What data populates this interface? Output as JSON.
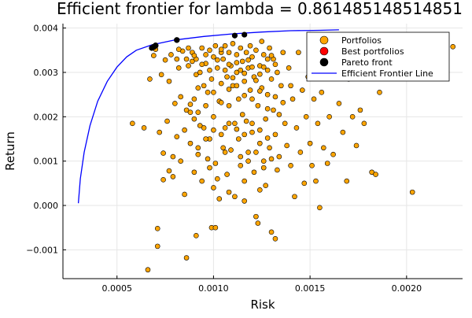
{
  "chart_data": {
    "type": "scatter",
    "title": "Efficient frontier for lambda = 0.861485148514851",
    "xlabel": "Risk",
    "ylabel": "Return",
    "xlim": [
      0.00022,
      0.00229
    ],
    "ylim": [
      -0.00165,
      0.0041
    ],
    "xticks": [
      0.0005,
      0.001,
      0.0015,
      0.002
    ],
    "xtick_labels": [
      "0.0005",
      "0.0010",
      "0.0015",
      "0.0020"
    ],
    "yticks": [
      -0.001,
      0.0,
      0.001,
      0.002,
      0.003,
      0.004
    ],
    "ytick_labels": [
      "−0.001",
      "0.000",
      "0.001",
      "0.002",
      "0.003",
      "0.004"
    ],
    "grid": true,
    "legend_position": "top-right",
    "legend": [
      {
        "label": "Portfolios",
        "kind": "marker",
        "color": "#FFA500"
      },
      {
        "label": "Best portfolios",
        "kind": "marker",
        "color": "#FF0000"
      },
      {
        "label": "Pareto front",
        "kind": "marker",
        "color": "#000000"
      },
      {
        "label": "Efficient Frontier Line",
        "kind": "line",
        "color": "#0000FF"
      }
    ],
    "series": [
      {
        "name": "Portfolios",
        "kind": "scatter",
        "color": "#FFA500",
        "points": [
          [
            0.00058,
            0.00185
          ],
          [
            0.00064,
            0.00175
          ],
          [
            0.00066,
            -0.00145
          ],
          [
            0.00067,
            0.00285
          ],
          [
            0.00069,
            0.00338
          ],
          [
            0.0007,
            0.00352
          ],
          [
            0.00071,
            -0.00052
          ],
          [
            0.00071,
            -0.00092
          ],
          [
            0.00072,
            0.00165
          ],
          [
            0.00073,
            0.00295
          ],
          [
            0.00074,
            0.00118
          ],
          [
            0.00074,
            0.00058
          ],
          [
            0.00075,
            0.00328
          ],
          [
            0.00076,
            0.0019
          ],
          [
            0.00077,
            0.00078
          ],
          [
            0.00077,
            0.0028
          ],
          [
            0.00078,
            0.0034
          ],
          [
            0.00079,
            0.0011
          ],
          [
            0.00079,
            0.00065
          ],
          [
            0.0008,
            0.0023
          ],
          [
            0.00081,
            0.0033
          ],
          [
            0.00081,
            0.00155
          ],
          [
            0.00082,
            0.0031
          ],
          [
            0.00083,
            0.00245
          ],
          [
            0.00083,
            0.001
          ],
          [
            0.00084,
            0.00348
          ],
          [
            0.00085,
            0.0017
          ],
          [
            0.00085,
            0.00025
          ],
          [
            0.00086,
            -0.00118
          ],
          [
            0.00086,
            0.00215
          ],
          [
            0.00087,
            0.00355
          ],
          [
            0.00087,
            0.00315
          ],
          [
            0.00088,
            0.0021
          ],
          [
            0.00088,
            0.0014
          ],
          [
            0.00089,
            0.00325
          ],
          [
            0.00089,
            0.00345
          ],
          [
            0.0009,
            0.0024
          ],
          [
            0.0009,
            0.00075
          ],
          [
            0.0009,
            0.00195
          ],
          [
            0.00091,
            0.00295
          ],
          [
            0.00091,
            0.0033
          ],
          [
            0.00091,
            -0.00068
          ],
          [
            0.00092,
            0.0013
          ],
          [
            0.00092,
            0.00265
          ],
          [
            0.00093,
            0.003
          ],
          [
            0.00093,
            0.0018
          ],
          [
            0.00094,
            0.00355
          ],
          [
            0.00094,
            0.00055
          ],
          [
            0.00095,
            0.0027
          ],
          [
            0.00095,
            0.00175
          ],
          [
            0.00096,
            0.0032
          ],
          [
            0.00096,
            0.0034
          ],
          [
            0.00097,
            0.00255
          ],
          [
            0.00097,
            0.00105
          ],
          [
            0.00098,
            0.0035
          ],
          [
            0.00098,
            0.0015
          ],
          [
            0.00099,
            0.00285
          ],
          [
            0.00099,
            -0.0005
          ],
          [
            0.001,
            0.002
          ],
          [
            0.001,
            0.00335
          ],
          [
            0.00101,
            0.0036
          ],
          [
            0.00101,
            0.00095
          ],
          [
            0.00101,
            -0.0005
          ],
          [
            0.00102,
            0.0031
          ],
          [
            0.00102,
            0.0006
          ],
          [
            0.00103,
            0.00235
          ],
          [
            0.00103,
            0.00015
          ],
          [
            0.00104,
            0.00345
          ],
          [
            0.00104,
            0.00275
          ],
          [
            0.00105,
            0.0013
          ],
          [
            0.00105,
            0.0033
          ],
          [
            0.00106,
            0.00175
          ],
          [
            0.00106,
            0.0036
          ],
          [
            0.00107,
            0.0029
          ],
          [
            0.00107,
            0.0007
          ],
          [
            0.00108,
            0.00345
          ],
          [
            0.00108,
            0.00225
          ],
          [
            0.00109,
            0.00315
          ],
          [
            0.00109,
            0.00125
          ],
          [
            0.0011,
            0.0027
          ],
          [
            0.0011,
            0.00365
          ],
          [
            0.00111,
            0.0002
          ],
          [
            0.00111,
            0.00185
          ],
          [
            0.00112,
            0.0034
          ],
          [
            0.00112,
            0.003
          ],
          [
            0.00113,
            0.0024
          ],
          [
            0.00113,
            0.0015
          ],
          [
            0.00114,
            0.00355
          ],
          [
            0.00114,
            0.0009
          ],
          [
            0.00115,
            0.00325
          ],
          [
            0.00115,
            0.00205
          ],
          [
            0.00116,
            0.0028
          ],
          [
            0.00116,
            0.00055
          ],
          [
            0.00117,
            0.00345
          ],
          [
            0.00117,
            0.0019
          ],
          [
            0.00118,
            0.0031
          ],
          [
            0.00118,
            0.0012
          ],
          [
            0.00119,
            0.0026
          ],
          [
            0.00119,
            0.0036
          ],
          [
            0.0012,
            0.00335
          ],
          [
            0.0012,
            0.00165
          ],
          [
            0.00121,
            0.0029
          ],
          [
            0.00121,
            0.00075
          ],
          [
            0.00122,
            0.0035
          ],
          [
            0.00122,
            -0.00025
          ],
          [
            0.00123,
            0.00225
          ],
          [
            0.00123,
            -0.0004
          ],
          [
            0.00124,
            0.00315
          ],
          [
            0.00124,
            0.0014
          ],
          [
            0.00125,
            0.0037
          ],
          [
            0.00125,
            0.00265
          ],
          [
            0.00126,
            0.001
          ],
          [
            0.00126,
            0.0034
          ],
          [
            0.00127,
            0.00195
          ],
          [
            0.00127,
            0.00045
          ],
          [
            0.00128,
            0.00305
          ],
          [
            0.00128,
            0.0025
          ],
          [
            0.00129,
            0.00355
          ],
          [
            0.00129,
            0.0013
          ],
          [
            0.0013,
            0.00285
          ],
          [
            0.0013,
            -0.0006
          ],
          [
            0.00131,
            0.00215
          ],
          [
            0.00131,
            0.0033
          ],
          [
            0.00132,
            0.0016
          ],
          [
            0.00132,
            -0.00075
          ],
          [
            0.00133,
            0.003
          ],
          [
            0.00133,
            0.0008
          ],
          [
            0.00134,
            0.00205
          ],
          [
            0.00134,
            0.0011
          ],
          [
            0.00135,
            0.0027
          ],
          [
            0.00136,
            0.00345
          ],
          [
            0.00137,
            0.00185
          ],
          [
            0.00138,
            0.00135
          ],
          [
            0.00139,
            0.0031
          ],
          [
            0.0014,
            0.0009
          ],
          [
            0.00141,
            0.0024
          ],
          [
            0.00142,
            0.0002
          ],
          [
            0.00143,
            0.00175
          ],
          [
            0.00144,
            0.00345
          ],
          [
            0.00145,
            0.0012
          ],
          [
            0.00146,
            0.0026
          ],
          [
            0.00147,
            0.0005
          ],
          [
            0.00148,
            0.002
          ],
          [
            0.00149,
            0.0029
          ],
          [
            0.0015,
            0.0014
          ],
          [
            0.00151,
            0.0009
          ],
          [
            0.00152,
            0.0024
          ],
          [
            0.00153,
            0.00055
          ],
          [
            0.00154,
            0.00185
          ],
          [
            0.00155,
            -5e-05
          ],
          [
            0.00156,
            0.00255
          ],
          [
            0.00157,
            0.0013
          ],
          [
            0.00158,
            0.0031
          ],
          [
            0.00159,
            0.00095
          ],
          [
            0.0016,
            0.002
          ],
          [
            0.00162,
            0.00115
          ],
          [
            0.00163,
            0.0033
          ],
          [
            0.00165,
            0.0023
          ],
          [
            0.00167,
            0.00165
          ],
          [
            0.00169,
            0.00055
          ],
          [
            0.0017,
            0.00285
          ],
          [
            0.00172,
            0.002
          ],
          [
            0.00174,
            0.00135
          ],
          [
            0.00176,
            0.00215
          ],
          [
            0.00178,
            0.00185
          ],
          [
            0.00182,
            0.00075
          ],
          [
            0.00184,
            0.0007
          ],
          [
            0.00186,
            0.00255
          ],
          [
            0.00203,
            0.0003
          ],
          [
            0.00224,
            0.00358
          ],
          [
            0.00104,
            0.00352
          ],
          [
            0.00108,
            0.00318
          ],
          [
            0.00112,
            0.00322
          ],
          [
            0.00116,
            0.00298
          ],
          [
            0.0012,
            0.00312
          ],
          [
            0.00124,
            0.00296
          ],
          [
            0.00128,
            0.0033
          ],
          [
            0.00132,
            0.00318
          ],
          [
            0.00106,
            0.00305
          ],
          [
            0.0011,
            0.00288
          ],
          [
            0.00114,
            0.00305
          ],
          [
            0.00118,
            0.00328
          ],
          [
            0.00122,
            0.00282
          ],
          [
            0.00126,
            0.00312
          ],
          [
            0.0013,
            0.00338
          ],
          [
            0.00102,
            0.00328
          ],
          [
            0.00098,
            0.00305
          ],
          [
            0.00094,
            0.00318
          ],
          [
            0.0009,
            0.00338
          ],
          [
            0.00086,
            0.0033
          ],
          [
            0.00082,
            0.00352
          ],
          [
            0.001,
            0.00255
          ],
          [
            0.00104,
            0.00232
          ],
          [
            0.00108,
            0.00262
          ],
          [
            0.00112,
            0.0027
          ],
          [
            0.00116,
            0.00248
          ],
          [
            0.0012,
            0.0024
          ],
          [
            0.00124,
            0.00258
          ],
          [
            0.00128,
            0.00218
          ],
          [
            0.00132,
            0.00245
          ],
          [
            0.00136,
            0.00232
          ],
          [
            0.0014,
            0.0027
          ],
          [
            0.00096,
            0.00225
          ],
          [
            0.00092,
            0.0021
          ],
          [
            0.00088,
            0.00228
          ],
          [
            0.001,
            0.0017
          ],
          [
            0.00104,
            0.0016
          ],
          [
            0.00108,
            0.00185
          ],
          [
            0.00112,
            0.00172
          ],
          [
            0.00116,
            0.0016
          ],
          [
            0.0012,
            0.00185
          ],
          [
            0.00124,
            0.0017
          ],
          [
            0.00128,
            0.00152
          ],
          [
            0.00096,
            0.0015
          ],
          [
            0.00092,
            0.00115
          ],
          [
            0.00098,
            0.00085
          ],
          [
            0.00106,
            0.0012
          ],
          [
            0.00114,
            0.0011
          ],
          [
            0.00118,
            0.001
          ],
          [
            0.00122,
            0.0012
          ],
          [
            0.00126,
            0.00085
          ],
          [
            0.0013,
            0.00105
          ],
          [
            0.001,
            0.0004
          ],
          [
            0.00108,
            0.0003
          ],
          [
            0.00116,
            0.0001
          ],
          [
            0.00124,
            0.00035
          ]
        ]
      },
      {
        "name": "Best portfolios",
        "kind": "scatter",
        "color": "#FF0000",
        "points": [
          [
            0.00069,
            0.00357
          ],
          [
            0.0007,
            0.0036
          ],
          [
            0.00081,
            0.00373
          ]
        ]
      },
      {
        "name": "Pareto front",
        "kind": "scatter",
        "color": "#000000",
        "points": [
          [
            0.00068,
            0.00355
          ],
          [
            0.00069,
            0.00358
          ],
          [
            0.0007,
            0.00361
          ],
          [
            0.00081,
            0.00373
          ],
          [
            0.00111,
            0.00383
          ],
          [
            0.00116,
            0.00385
          ]
        ]
      },
      {
        "name": "Efficient Frontier Line",
        "kind": "line",
        "color": "#0000FF",
        "points": [
          [
            0.0003,
            5e-05
          ],
          [
            0.00031,
            0.0006
          ],
          [
            0.00033,
            0.0012
          ],
          [
            0.00036,
            0.0018
          ],
          [
            0.0004,
            0.00235
          ],
          [
            0.00045,
            0.0028
          ],
          [
            0.0005,
            0.00312
          ],
          [
            0.00055,
            0.00335
          ],
          [
            0.0006,
            0.0035
          ],
          [
            0.00068,
            0.00362
          ],
          [
            0.0008,
            0.00373
          ],
          [
            0.00095,
            0.00381
          ],
          [
            0.0011,
            0.00387
          ],
          [
            0.00125,
            0.00391
          ],
          [
            0.0014,
            0.00394
          ],
          [
            0.00155,
            0.00395
          ],
          [
            0.00165,
            0.00396
          ]
        ]
      }
    ]
  }
}
